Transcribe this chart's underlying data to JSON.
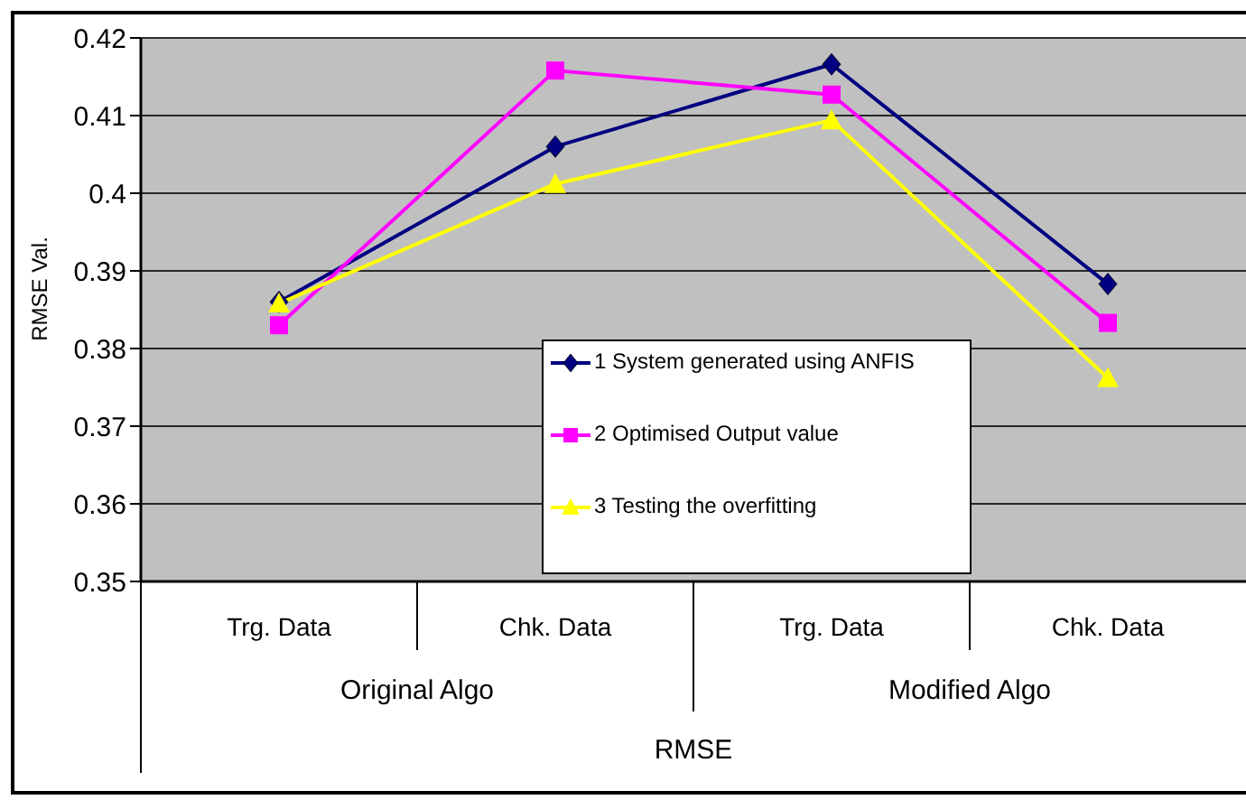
{
  "chart_data": {
    "type": "line",
    "ylabel": "RMSE Val.",
    "categories": [
      "Trg. Data",
      "Chk. Data",
      "Trg. Data",
      "Chk. Data"
    ],
    "annotations": [
      "Original Algo",
      "Modified Algo",
      "RMSE"
    ],
    "series": [
      {
        "name": "1 System generated using ANFIS",
        "color": "#000080",
        "marker": "diamond",
        "values": [
          0.386,
          0.406,
          0.4166,
          0.3883
        ]
      },
      {
        "name": "2 Optimised Output value",
        "color": "#ff00ff",
        "marker": "square",
        "values": [
          0.383,
          0.4158,
          0.4127,
          0.3833
        ]
      },
      {
        "name": "3 Testing the overfitting",
        "color": "#ffff00",
        "marker": "triangle",
        "values": [
          0.3858,
          0.4012,
          0.4094,
          0.3762
        ]
      }
    ],
    "ylim": [
      0.35,
      0.42
    ],
    "yticks": [
      0.35,
      0.36,
      0.37,
      0.38,
      0.39,
      0.4,
      0.41,
      0.42
    ],
    "grid": "y",
    "legend": "bottom"
  }
}
